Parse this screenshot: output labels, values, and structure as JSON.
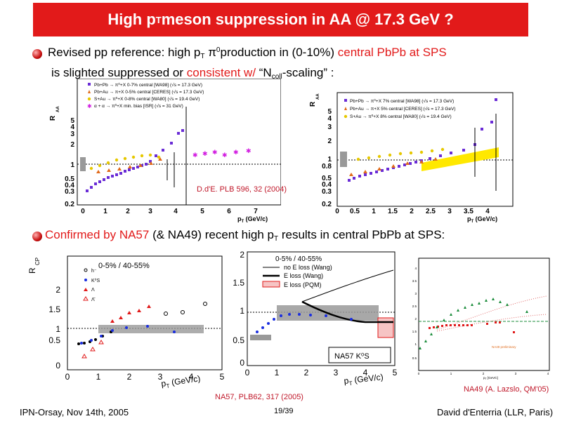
{
  "slide": {
    "title": "High p",
    "title_sub": "T",
    "title_rest": " meson suppression in AA @ 17.3 GeV ?",
    "bullet1": {
      "a": "Revised pp reference: high p",
      "a_sub": "T",
      "b": " π",
      "b_sup": "0",
      "c": "production in (0-10%) ",
      "d_red": "central PbPb at SPS",
      "line2_a": "is slighted suppressed or ",
      "line2_red": "consistent w/",
      "line2_b": "  “N",
      "line2_sub": "coll",
      "line2_c": "-scaling” :"
    },
    "bullet2": {
      "a_red": "Confirmed by NA57",
      "b": " (& NA49) recent high p",
      "b_sub": "T",
      "c": " results in central PbPb at SPS:"
    },
    "footer": {
      "left": "IPN-Orsay, Nov 14th, 2005",
      "page": "19/39",
      "right": "David d'Enterria (LLR, Paris)"
    },
    "refs": {
      "plb596": "D.d'E. PLB 596, 32 (2004)",
      "na57": "NA57, PLB62, 317 (2005)",
      "na49": "NA49 (A. Lazslo, QM'05)"
    }
  },
  "plot1": {
    "ylabel": "R",
    "ylabel_sub": "AA",
    "xlabel": "p",
    "xlabel_sub": "T",
    "xlabel_unit": " (GeV/c)",
    "yticks": [
      "0.2",
      "0.3",
      "0.4",
      "0.5",
      "1",
      "2",
      "3",
      "4",
      "5"
    ],
    "xticks": [
      "0",
      "1",
      "2",
      "3",
      "4",
      "5",
      "6",
      "7"
    ],
    "legend": [
      "Pb+Pb → π⁰+X  0-7%  central [WA98] (√s = 17.3 GeV)",
      "Pb+Au → π+X  0-5%  central [CERES] (√s = 17.3 GeV)",
      "S+Au → π⁰+X  0-8%  central [WA80] (√s = 19.4 GeV)",
      "α + α → π⁰+X  min. bias [ISR] (√s = 31 GeV)"
    ],
    "colors": {
      "wa98": "#6a2cd6",
      "ceres": "#e06a1a",
      "wa80": "#e6c800",
      "isr": "#d11ae0"
    }
  },
  "plot2": {
    "ylabel": "R",
    "ylabel_sub": "AA",
    "xlabel": "p",
    "xlabel_sub": "T",
    "xlabel_unit": " (GeV/c)",
    "yticks": [
      "0.2",
      "0.3",
      "0.4",
      "0.5",
      "0.8",
      "1",
      "2",
      "3",
      "4",
      "5"
    ],
    "xticks": [
      "0",
      "0.5",
      "1",
      "1.5",
      "2",
      "2.5",
      "3",
      "3.5",
      "4"
    ],
    "legend": [
      "Pb+Pb → π⁰+X  7%  central [WA98] (√s = 17.3 GeV)",
      "Pb+Au → π+X  5%  central [CERES] (√s = 17.3 GeV)",
      "S+Au → π⁰+X  8%  central [WA80] (√s = 19.4 GeV)"
    ]
  },
  "plot3": {
    "ylabel": "R",
    "ylabel_sub": "CP",
    "centrality": "0-5% / 40-55%",
    "xlabel": "p",
    "xlabel_sub": "T",
    "xlabel_unit": " (GeV/c)",
    "yticks": [
      "0",
      "0.5",
      "1",
      "1.5",
      "2"
    ],
    "xticks": [
      "0",
      "1",
      "2",
      "3",
      "4",
      "5"
    ],
    "legend": [
      "h⁻",
      "K⁰S",
      "Λ",
      "Λ̄"
    ]
  },
  "plot4": {
    "centrality": "0-5% / 40-55%",
    "yticks": [
      "0",
      "0.5",
      "1",
      "1.5",
      "2"
    ],
    "xticks": [
      "0",
      "1",
      "2",
      "3",
      "4",
      "5"
    ],
    "xlabel": "p",
    "xlabel_sub": "T",
    "xlabel_unit": " (GeV/c)",
    "legend": [
      "no E loss (Wang)",
      "E loss (Wang)",
      "E loss (PQM)"
    ],
    "tag": "NA57  K⁰S"
  },
  "plot5": {
    "yticks": [
      "0.5",
      "1",
      "1.5",
      "2",
      "2.5",
      "3",
      "3.5",
      "4"
    ],
    "xticks": [
      "0",
      "1",
      "2",
      "3",
      "4"
    ],
    "prelim": "NA49 preliminary",
    "xlabel": "p",
    "xlabel_sub": "T",
    "xlabel_unit": " [GeV/c]"
  }
}
